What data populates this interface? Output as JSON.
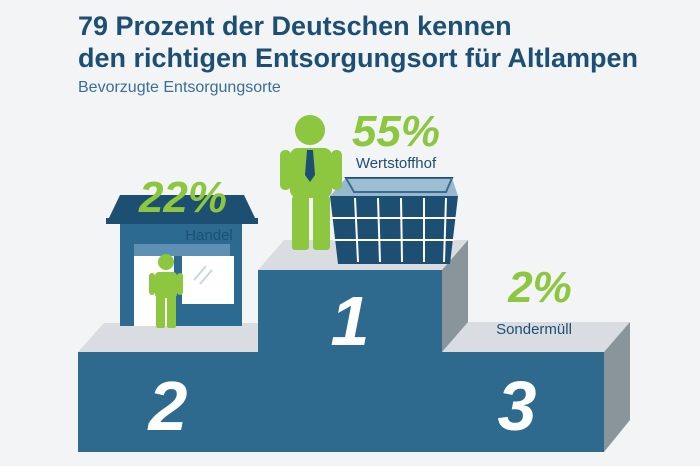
{
  "header": {
    "title_line1": "79 Prozent der Deutschen kennen",
    "title_line2": "den richtigen Entsorgungsort für Altlampen",
    "subtitle": "Bevorzugte Entsorgungsorte"
  },
  "colors": {
    "title": "#1d4f73",
    "accent_green": "#8dc63f",
    "podium_front": "#2e6a8e",
    "podium_top": "#d9dde1",
    "podium_side": "#8a949b",
    "building": "#2d6a92",
    "roof": "#1d4f73"
  },
  "icons": [
    "shop-icon",
    "person-icon",
    "recycling-container-icon"
  ],
  "chart_data": {
    "type": "bar",
    "categories": [
      "Handel",
      "Wertstoffhof",
      "Sondermüll"
    ],
    "values": [
      22,
      55,
      2
    ],
    "unit": "%",
    "value_labels": [
      "22%",
      "55%",
      "2%"
    ],
    "ranks": [
      "2",
      "1",
      "3"
    ],
    "title": "79 Prozent der Deutschen kennen den richtigen Entsorgungsort für Altlampen",
    "subtitle": "Bevorzugte Entsorgungsorte",
    "xlabel": "",
    "ylabel": "",
    "grid": false,
    "legend": "none"
  }
}
